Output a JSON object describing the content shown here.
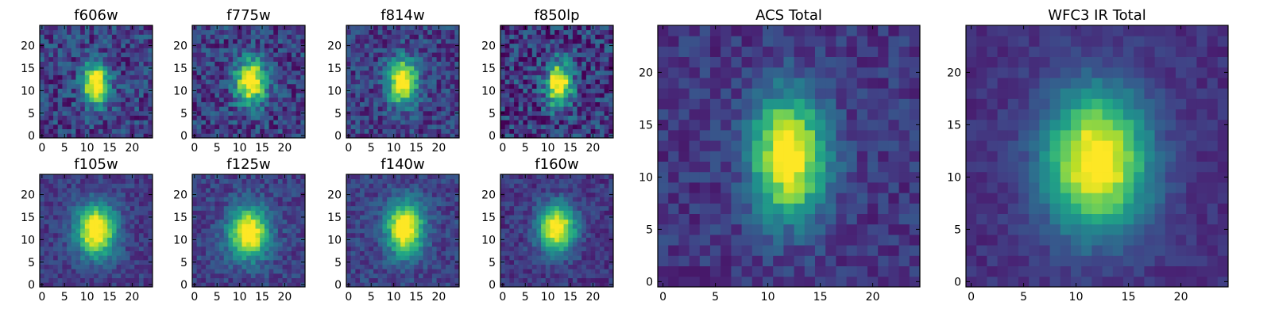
{
  "chart_data": [
    {
      "type": "heatmap",
      "title": "f606w",
      "size": 25,
      "xticks": [
        0,
        5,
        10,
        15,
        20
      ],
      "yticks": [
        0,
        5,
        10,
        15,
        20
      ],
      "center": [
        12,
        11.5
      ],
      "sigma": [
        2.0,
        3.2
      ],
      "noise": 0.18,
      "bg": 0.35,
      "seed": 11,
      "colormap": "viridis"
    },
    {
      "type": "heatmap",
      "title": "f775w",
      "size": 25,
      "xticks": [
        0,
        5,
        10,
        15,
        20
      ],
      "yticks": [
        0,
        5,
        10,
        15,
        20
      ],
      "center": [
        12.5,
        12
      ],
      "sigma": [
        2.4,
        3.4
      ],
      "noise": 0.18,
      "bg": 0.35,
      "seed": 23,
      "colormap": "viridis"
    },
    {
      "type": "heatmap",
      "title": "f814w",
      "size": 25,
      "xticks": [
        0,
        5,
        10,
        15,
        20
      ],
      "yticks": [
        0,
        5,
        10,
        15,
        20
      ],
      "center": [
        12,
        12
      ],
      "sigma": [
        2.2,
        3.4
      ],
      "noise": 0.16,
      "bg": 0.35,
      "seed": 37,
      "colormap": "viridis"
    },
    {
      "type": "heatmap",
      "title": "f850lp",
      "size": 25,
      "xticks": [
        0,
        5,
        10,
        15,
        20
      ],
      "yticks": [
        0,
        5,
        10,
        15,
        20
      ],
      "center": [
        12.5,
        11.5
      ],
      "sigma": [
        2.0,
        3.4
      ],
      "noise": 0.22,
      "bg": 0.3,
      "seed": 41,
      "colormap": "viridis"
    },
    {
      "type": "heatmap",
      "title": "f105w",
      "size": 25,
      "xticks": [
        0,
        5,
        10,
        15,
        20
      ],
      "yticks": [
        0,
        5,
        10,
        15,
        20
      ],
      "center": [
        12,
        12
      ],
      "sigma": [
        3.0,
        4.0
      ],
      "noise": 0.1,
      "bg": 0.33,
      "seed": 53,
      "colormap": "viridis"
    },
    {
      "type": "heatmap",
      "title": "f125w",
      "size": 25,
      "xticks": [
        0,
        5,
        10,
        15,
        20
      ],
      "yticks": [
        0,
        5,
        10,
        15,
        20
      ],
      "center": [
        12,
        11.5
      ],
      "sigma": [
        3.0,
        3.8
      ],
      "noise": 0.11,
      "bg": 0.36,
      "seed": 67,
      "colormap": "viridis"
    },
    {
      "type": "heatmap",
      "title": "f140w",
      "size": 25,
      "xticks": [
        0,
        5,
        10,
        15,
        20
      ],
      "yticks": [
        0,
        5,
        10,
        15,
        20
      ],
      "center": [
        12.5,
        12.5
      ],
      "sigma": [
        2.8,
        4.0
      ],
      "noise": 0.11,
      "bg": 0.36,
      "seed": 71,
      "colormap": "viridis"
    },
    {
      "type": "heatmap",
      "title": "f160w",
      "size": 25,
      "xticks": [
        0,
        5,
        10,
        15,
        20
      ],
      "yticks": [
        0,
        5,
        10,
        15,
        20
      ],
      "center": [
        12,
        12.5
      ],
      "sigma": [
        2.8,
        3.6
      ],
      "noise": 0.1,
      "bg": 0.3,
      "seed": 83,
      "colormap": "viridis"
    },
    {
      "type": "heatmap",
      "title": "ACS Total",
      "size": 25,
      "xticks": [
        0,
        5,
        10,
        15,
        20
      ],
      "yticks": [
        0,
        5,
        10,
        15,
        20
      ],
      "center": [
        12,
        12
      ],
      "sigma": [
        2.4,
        4.0
      ],
      "noise": 0.1,
      "bg": 0.3,
      "seed": 97,
      "colormap": "viridis"
    },
    {
      "type": "heatmap",
      "title": "WFC3 IR Total",
      "size": 25,
      "xticks": [
        0,
        5,
        10,
        15,
        20
      ],
      "yticks": [
        0,
        5,
        10,
        15,
        20
      ],
      "center": [
        12,
        11.5
      ],
      "sigma": [
        3.4,
        4.6
      ],
      "noise": 0.06,
      "bg": 0.26,
      "seed": 101,
      "colormap": "viridis"
    }
  ]
}
